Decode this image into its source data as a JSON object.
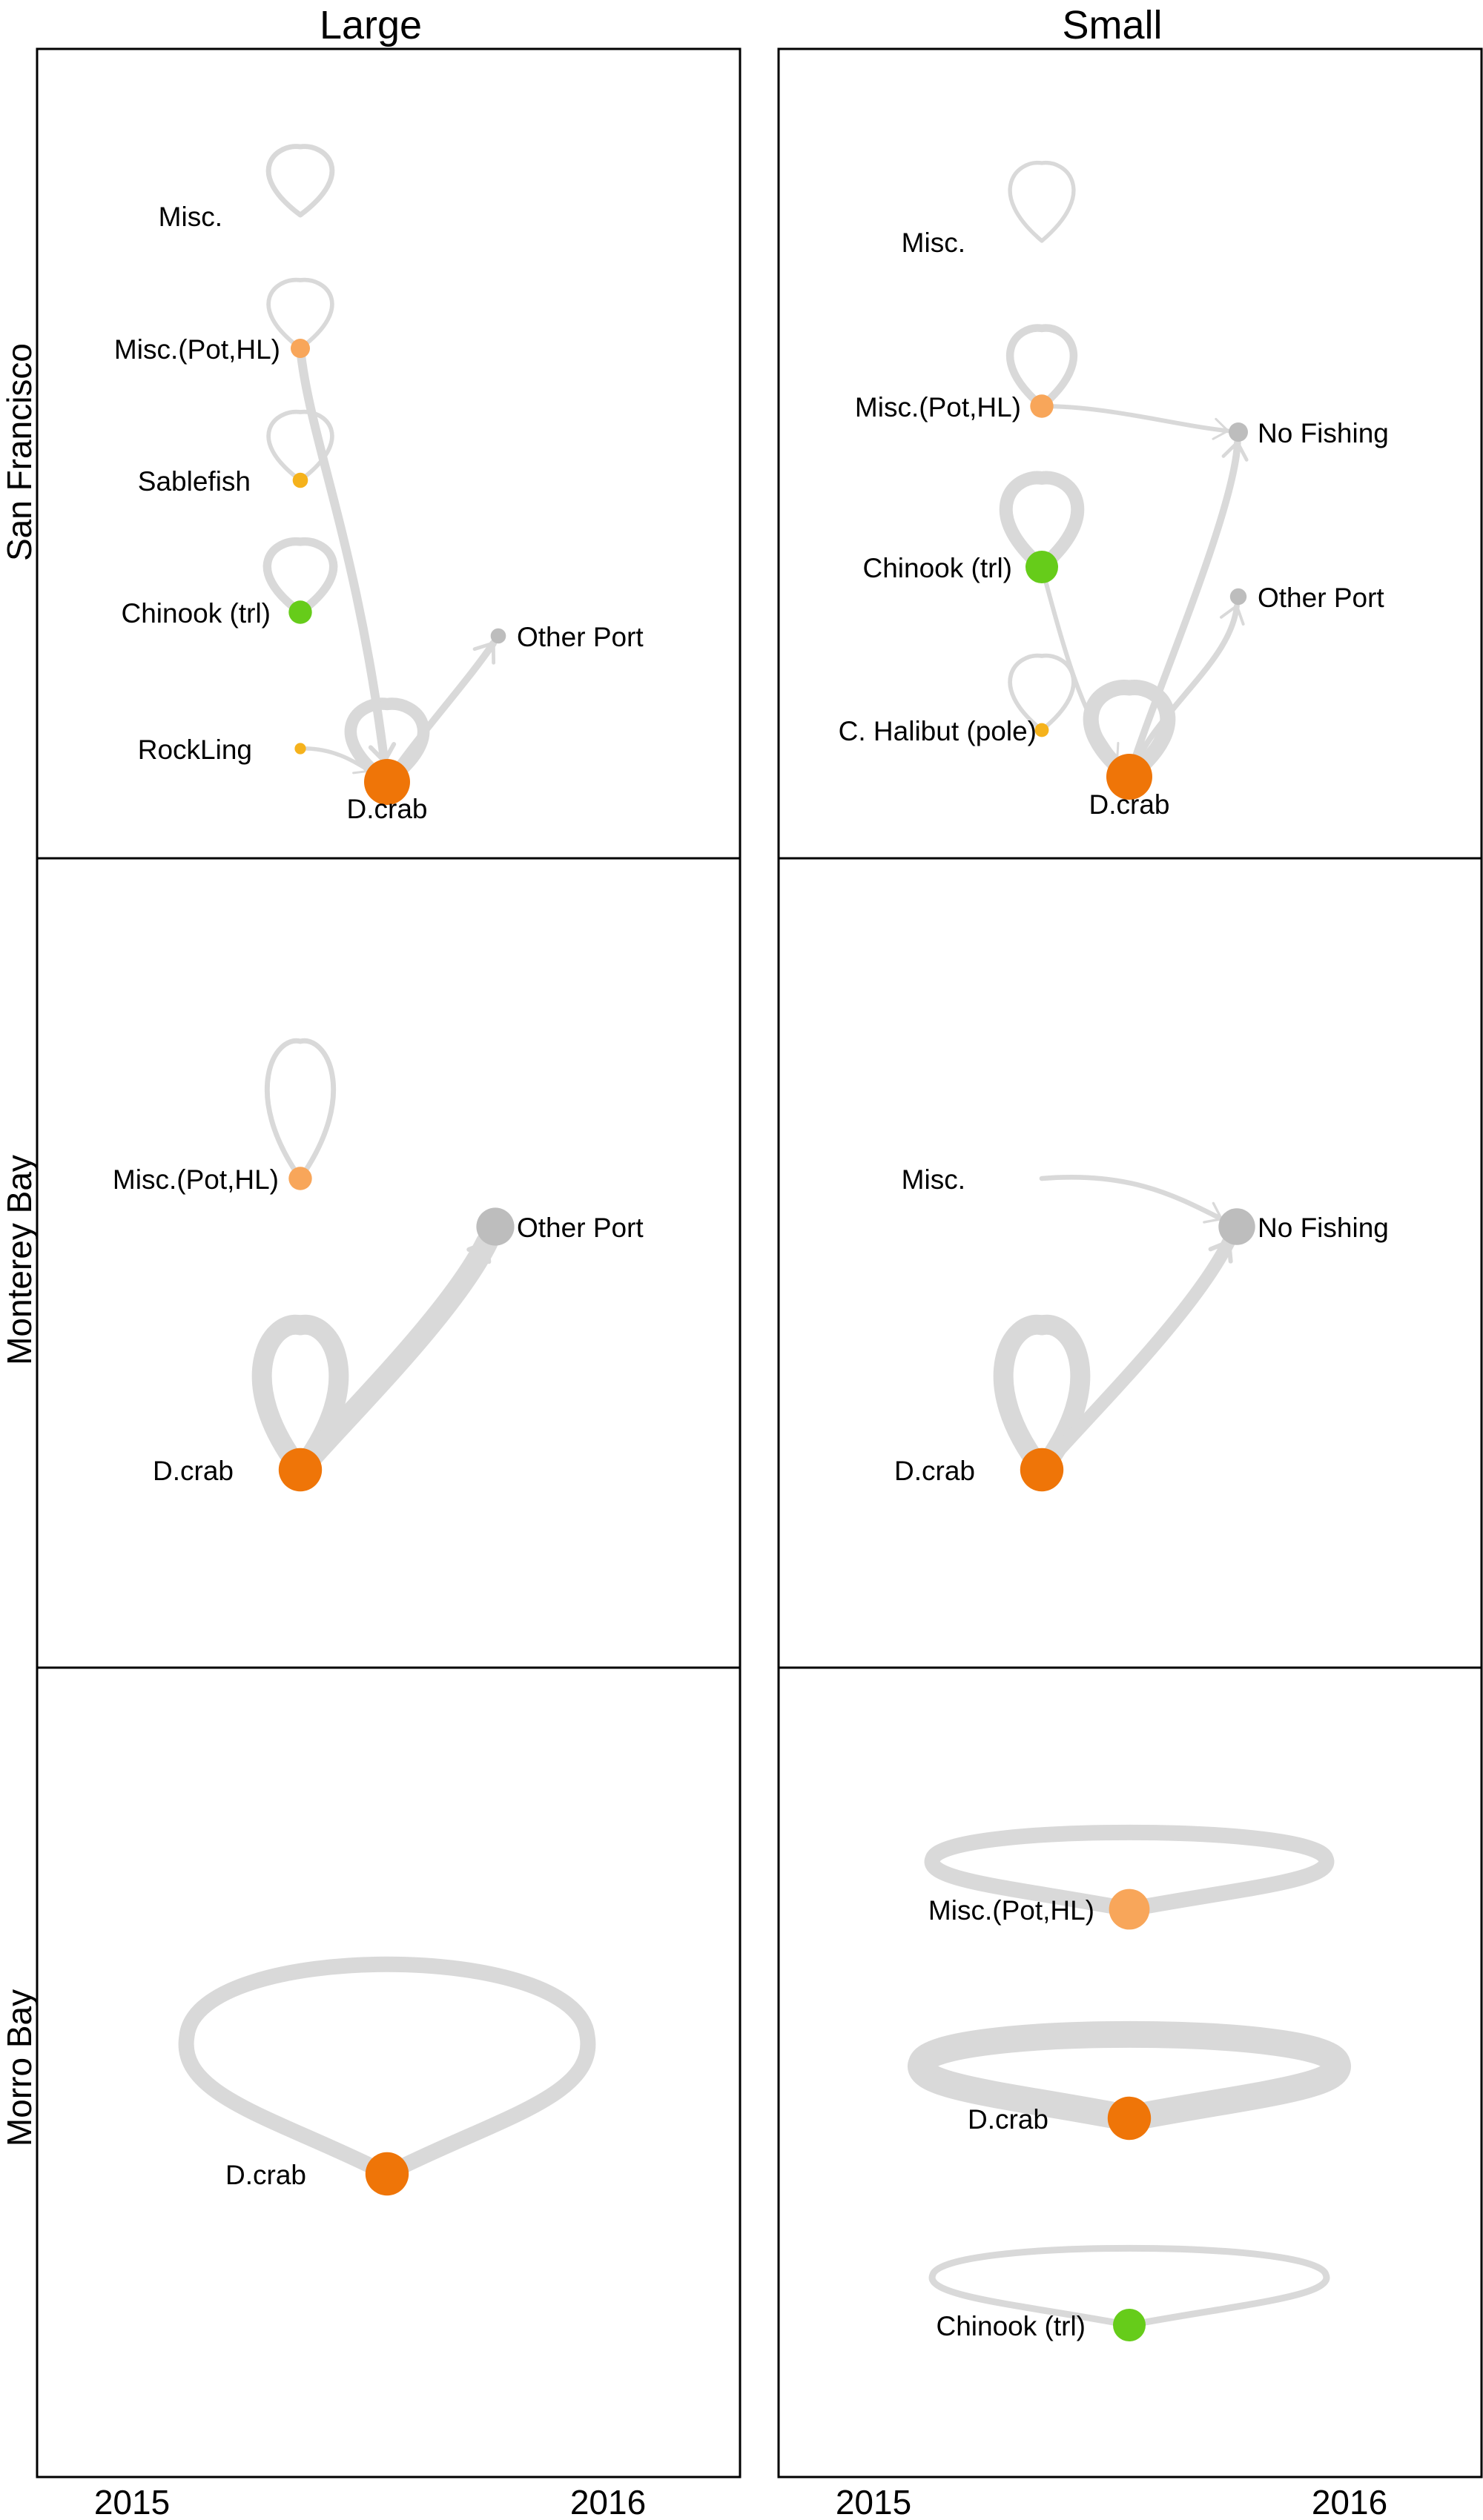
{
  "columns": [
    "Large",
    "Small"
  ],
  "rows": [
    "San Francisco",
    "Monterey Bay",
    "Morro Bay"
  ],
  "x_axis": {
    "tick_labels": [
      "2015",
      "2016"
    ]
  },
  "colors": {
    "edge": "#d9d9d9",
    "dcrab": "#ef7508",
    "misc_pot_hl": "#f8a65a",
    "sablefish": "#f5b21c",
    "rockling": "#f5b21c",
    "chinook": "#66cc1a",
    "halibut": "#f5b21c",
    "other": "#bdbdbd"
  },
  "panels": [
    {
      "row": "San Francisco",
      "column": "Large",
      "nodes": [
        {
          "id": "misc",
          "label": "Misc.",
          "size": 0
        },
        {
          "id": "mpot",
          "label": "Misc.(Pot,HL)",
          "size": 1,
          "color": "misc_pot_hl"
        },
        {
          "id": "sable",
          "label": "Sablefish",
          "size": 0.7,
          "color": "sablefish"
        },
        {
          "id": "chin",
          "label": "Chinook (trl)",
          "size": 1.3,
          "color": "chinook"
        },
        {
          "id": "rock",
          "label": "RockLing",
          "size": 0.4,
          "color": "rockling"
        },
        {
          "id": "dcrab",
          "label": "D.crab",
          "size": 3,
          "color": "dcrab"
        },
        {
          "id": "oport",
          "label": "Other Port",
          "size": 0.7,
          "color": "other"
        }
      ],
      "edges": [
        {
          "from": "misc",
          "to": "misc",
          "weight": 1.3
        },
        {
          "from": "mpot",
          "to": "mpot",
          "weight": 0.9
        },
        {
          "from": "sable",
          "to": "sable",
          "weight": 0.9
        },
        {
          "from": "chin",
          "to": "chin",
          "weight": 2.8
        },
        {
          "from": "dcrab",
          "to": "dcrab",
          "weight": 4.5
        },
        {
          "from": "mpot",
          "to": "dcrab",
          "weight": 3
        },
        {
          "from": "rock",
          "to": "dcrab",
          "weight": 0.8
        },
        {
          "from": "dcrab",
          "to": "oport",
          "weight": 2.2
        }
      ]
    },
    {
      "row": "San Francisco",
      "column": "Small",
      "nodes": [
        {
          "id": "misc",
          "label": "Misc.",
          "size": 0
        },
        {
          "id": "mpot",
          "label": "Misc.(Pot,HL)",
          "size": 1.3,
          "color": "misc_pot_hl"
        },
        {
          "id": "nofish",
          "label": "No Fishing",
          "size": 1,
          "color": "other"
        },
        {
          "id": "chin",
          "label": "Chinook (trl)",
          "size": 2,
          "color": "chinook"
        },
        {
          "id": "oport",
          "label": "Other Port",
          "size": 0.8,
          "color": "other"
        },
        {
          "id": "hal",
          "label": "C. Halibut (pole)",
          "size": 0.6,
          "color": "halibut"
        },
        {
          "id": "dcrab",
          "label": "D.crab",
          "size": 3,
          "color": "dcrab"
        }
      ],
      "edges": [
        {
          "from": "misc",
          "to": "misc",
          "weight": 0.8
        },
        {
          "from": "mpot",
          "to": "mpot",
          "weight": 2.5
        },
        {
          "from": "chin",
          "to": "chin",
          "weight": 5
        },
        {
          "from": "hal",
          "to": "hal",
          "weight": 0.9
        },
        {
          "from": "dcrab",
          "to": "dcrab",
          "weight": 6
        },
        {
          "from": "mpot",
          "to": "nofish",
          "weight": 1
        },
        {
          "from": "chin",
          "to": "dcrab",
          "weight": 1
        },
        {
          "from": "dcrab",
          "to": "nofish",
          "weight": 2.2
        },
        {
          "from": "dcrab",
          "to": "oport",
          "weight": 1.6
        }
      ]
    },
    {
      "row": "Monterey Bay",
      "column": "Large",
      "nodes": [
        {
          "id": "mpot",
          "label": "Misc.(Pot,HL)",
          "size": 1.3,
          "color": "misc_pot_hl"
        },
        {
          "id": "oport",
          "label": "Other Port",
          "size": 2.4,
          "color": "other"
        },
        {
          "id": "dcrab",
          "label": "D.crab",
          "size": 2.8,
          "color": "dcrab"
        }
      ],
      "edges": [
        {
          "from": "mpot",
          "to": "mpot",
          "weight": 1.3
        },
        {
          "from": "dcrab",
          "to": "dcrab",
          "weight": 8
        },
        {
          "from": "dcrab",
          "to": "oport",
          "weight": 9
        }
      ]
    },
    {
      "row": "Monterey Bay",
      "column": "Small",
      "nodes": [
        {
          "id": "misc",
          "label": "Misc.",
          "size": 0
        },
        {
          "id": "nofish",
          "label": "No Fishing",
          "size": 2.3,
          "color": "other"
        },
        {
          "id": "dcrab",
          "label": "D.crab",
          "size": 2.8,
          "color": "dcrab"
        }
      ],
      "edges": [
        {
          "from": "dcrab",
          "to": "dcrab",
          "weight": 8
        },
        {
          "from": "misc",
          "to": "nofish",
          "weight": 1.2
        },
        {
          "from": "dcrab",
          "to": "nofish",
          "weight": 5
        }
      ]
    },
    {
      "row": "Morro Bay",
      "column": "Large",
      "nodes": [
        {
          "id": "dcrab",
          "label": "D.crab",
          "size": 2.8,
          "color": "dcrab"
        }
      ],
      "edges": [
        {
          "from": "dcrab",
          "to": "dcrab",
          "weight": 6
        }
      ]
    },
    {
      "row": "Morro Bay",
      "column": "Small",
      "nodes": [
        {
          "id": "mpot",
          "label": "Misc.(Pot,HL)",
          "size": 2.6,
          "color": "misc_pot_hl"
        },
        {
          "id": "dcrab",
          "label": "D.crab",
          "size": 2.8,
          "color": "dcrab"
        },
        {
          "id": "chin",
          "label": "Chinook (trl)",
          "size": 2,
          "color": "chinook"
        }
      ],
      "edges": [
        {
          "from": "mpot",
          "to": "mpot",
          "weight": 6
        },
        {
          "from": "dcrab",
          "to": "dcrab",
          "weight": 11
        },
        {
          "from": "chin",
          "to": "chin",
          "weight": 2
        }
      ]
    }
  ]
}
